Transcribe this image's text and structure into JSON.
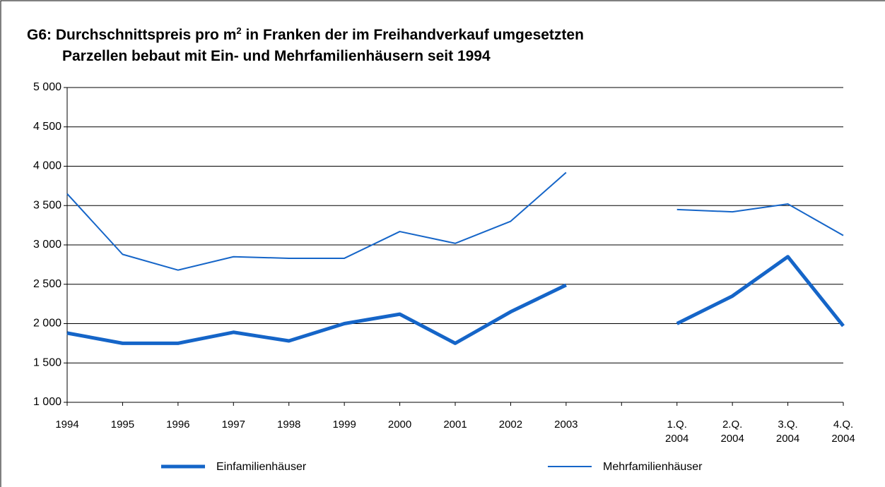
{
  "chart_data": {
    "type": "line",
    "title_parts": [
      "G6: Durchschnittspreis pro m",
      "2",
      " in Franken der im Freihandverkauf umgesetzten",
      "Parzellen bebaut mit Ein- und Mehrfamilienhäusern seit 1994"
    ],
    "categories": [
      "1994",
      "1995",
      "1996",
      "1997",
      "1998",
      "1999",
      "2000",
      "2001",
      "2002",
      "2003",
      null,
      "1.Q.\n2004",
      "2.Q.\n2004",
      "3.Q.\n2004",
      "4.Q.\n2004"
    ],
    "series": [
      {
        "name": "Einfamilienhäuser",
        "color": "#1565c8",
        "width": 5,
        "values": [
          1880,
          1750,
          1750,
          1890,
          1780,
          2000,
          2120,
          1750,
          2150,
          2490,
          null,
          2000,
          2350,
          2850,
          1970
        ]
      },
      {
        "name": "Mehrfamilienhäuser",
        "color": "#1565c8",
        "width": 2,
        "values": [
          3650,
          2880,
          2680,
          2850,
          2830,
          2830,
          3170,
          3020,
          3300,
          3920,
          null,
          3450,
          3420,
          3520,
          3120
        ]
      }
    ],
    "ylim": [
      1000,
      5000
    ],
    "yticks": [
      {
        "value": 1000,
        "label": "1 000"
      },
      {
        "value": 1500,
        "label": "1 500"
      },
      {
        "value": 2000,
        "label": "2 000"
      },
      {
        "value": 2500,
        "label": "2 500"
      },
      {
        "value": 3000,
        "label": "3 000"
      },
      {
        "value": 3500,
        "label": "3 500"
      },
      {
        "value": 4000,
        "label": "4 000"
      },
      {
        "value": 4500,
        "label": "4 500"
      },
      {
        "value": 5000,
        "label": "5 000"
      }
    ],
    "grid": true,
    "legend": "bottom"
  }
}
